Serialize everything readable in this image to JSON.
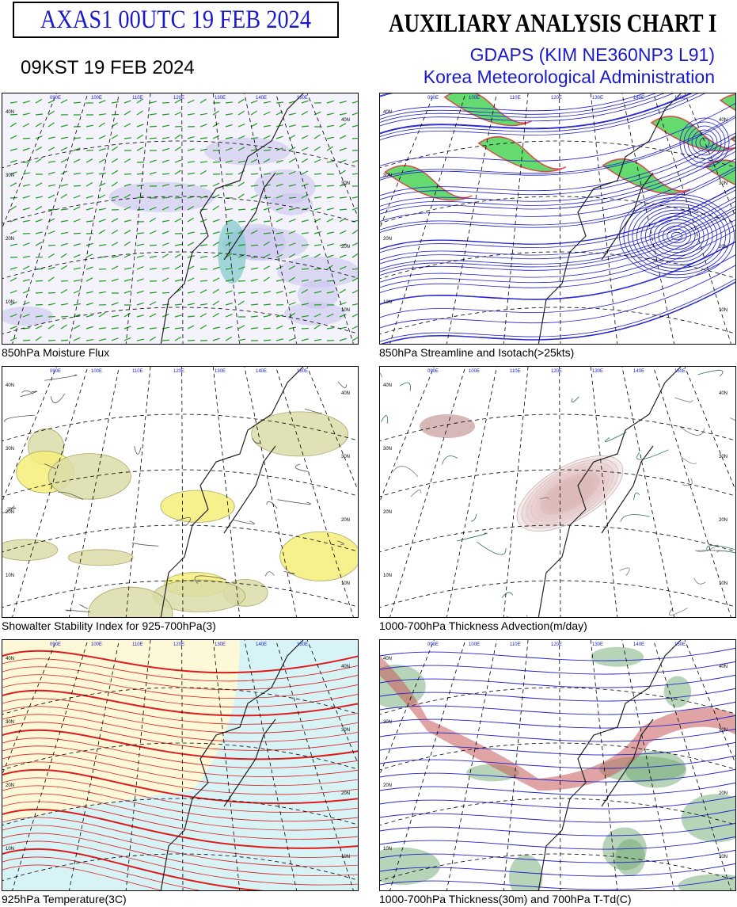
{
  "header": {
    "code_box": "AXAS1  00UTC 19 FEB 2024",
    "local_time": "09KST 19 FEB 2024",
    "title": "AUXILIARY ANALYSIS CHART  I",
    "model": "GDAPS (KIM NE360NP3 L91)",
    "agency": "Korea Meteorological Administration"
  },
  "panels": [
    {
      "caption": "850hPa Moisture Flux"
    },
    {
      "caption": "850hPa Streamline and Isotach(>25kts)"
    },
    {
      "caption": "Showalter Stability Index for 925-700hPa(3)"
    },
    {
      "caption": "1000-700hPa Thickness Advection(m/day)"
    },
    {
      "caption": "925hPa Temperature(3C)"
    },
    {
      "caption": "1000-700hPa Thickness(30m) and 700hPa T-Td(C)"
    }
  ],
  "map_labels": {
    "lat": [
      "40N",
      "30N",
      "20N",
      "10N"
    ],
    "lon": [
      "090E",
      "100E",
      "110E",
      "120E",
      "130E",
      "140E",
      "150E"
    ]
  }
}
